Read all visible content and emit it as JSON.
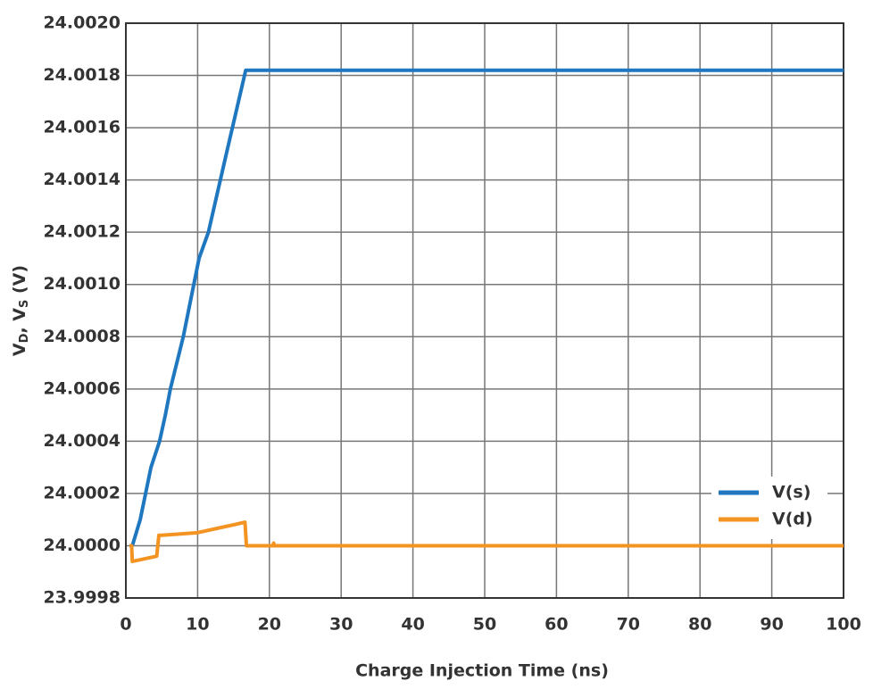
{
  "chart_data": {
    "type": "line",
    "xlabel": "Charge Injection Time (ns)",
    "ylabel_parts": [
      "V",
      "D",
      ", V",
      "S",
      " (V)"
    ],
    "xlim": [
      0,
      100
    ],
    "xticks": [
      0,
      10,
      20,
      30,
      40,
      50,
      60,
      70,
      80,
      90,
      100
    ],
    "ylim": [
      23.9998,
      24.002
    ],
    "yticks": [
      23.9998,
      {
        "value": 24.0,
        "label": "24.0000"
      },
      24.0002,
      24.0004,
      24.0006,
      24.0008,
      {
        "value": 24.001,
        "label": "24.0010"
      },
      24.0012,
      24.0014,
      24.0016,
      24.0018,
      {
        "value": 24.002,
        "label": "24.0020"
      }
    ],
    "grid": true,
    "legend": "lower right",
    "series": [
      {
        "name": "V(s)",
        "color": "#1f77c0",
        "x": [
          0.9,
          2,
          3.5,
          4.7,
          5.5,
          6.2,
          8,
          10.2,
          11.5,
          14,
          16.7,
          100
        ],
        "values": [
          24.0,
          24.0001,
          24.0003,
          24.0004,
          24.0005,
          24.0006,
          24.0008,
          24.0011,
          24.0012,
          24.0015,
          24.00182,
          24.00182
        ]
      },
      {
        "name": "V(d)",
        "color": "#f39322",
        "x": [
          0.5,
          0.8,
          0.9,
          4.3,
          4.6,
          5,
          10,
          15,
          16.6,
          16.8,
          20.5,
          20.6,
          20.7,
          100
        ],
        "values": [
          24.0,
          24.0,
          23.99994,
          23.99996,
          24.00004,
          24.00004,
          24.00005,
          24.00008,
          24.00009,
          24.0,
          24.0,
          24.00001,
          24.0,
          24.0
        ]
      }
    ]
  }
}
